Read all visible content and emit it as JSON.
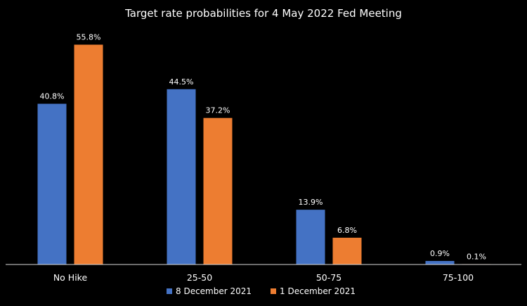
{
  "chart_data": {
    "type": "bar",
    "title": "Target rate probabilities for 4 May 2022 Fed Meeting",
    "xlabel": "",
    "ylabel": "",
    "categories": [
      "No Hike",
      "25-50",
      "50-75",
      "75-100"
    ],
    "series": [
      {
        "name": "8 December 2021",
        "color": "#4472c4",
        "values": [
          40.8,
          44.5,
          13.9,
          0.9
        ],
        "labels": [
          "40.8%",
          "44.5%",
          "13.9%",
          "0.9%"
        ]
      },
      {
        "name": "1 December 2021",
        "color": "#ed7d31",
        "values": [
          55.8,
          37.2,
          6.8,
          0.1
        ],
        "labels": [
          "55.8%",
          "37.2%",
          "6.8%",
          "0.1%"
        ]
      }
    ],
    "ylim": [
      0,
      60
    ],
    "grid": false,
    "legend_position": "bottom",
    "background": "#000000",
    "axis_color": "#d9d9d9",
    "text_color": "#ffffff"
  }
}
